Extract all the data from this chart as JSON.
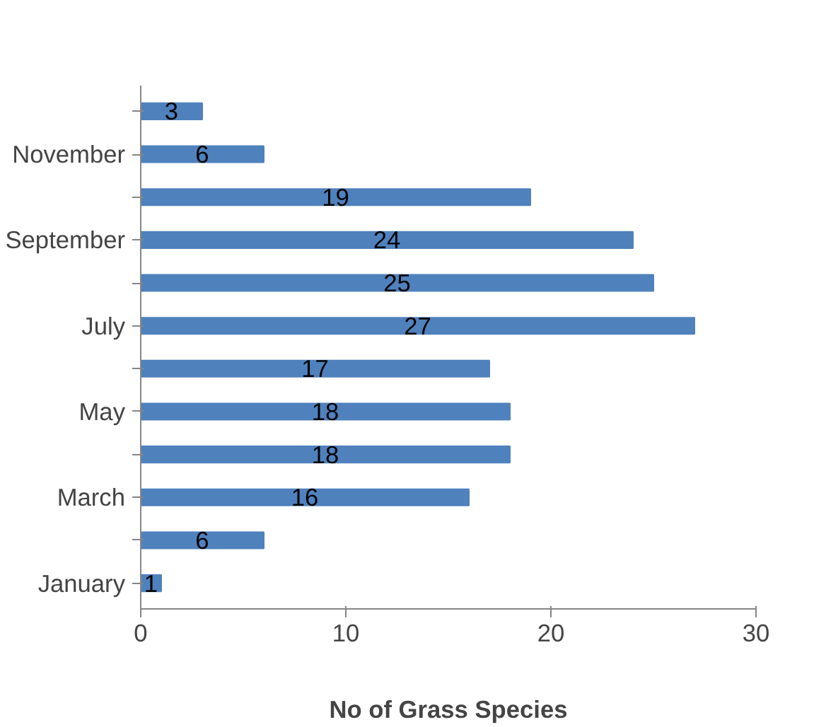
{
  "chart_data": {
    "type": "bar",
    "orientation": "horizontal",
    "xlabel": "No of Grass Species",
    "categories": [
      null,
      "November",
      null,
      "September",
      null,
      "July",
      null,
      "May",
      null,
      "March",
      null,
      "January"
    ],
    "values": [
      3,
      6,
      19,
      24,
      25,
      27,
      17,
      18,
      18,
      16,
      6,
      1
    ],
    "color": "#4f81bd",
    "xlim": [
      0,
      30
    ],
    "xticks": [
      0,
      10,
      20,
      30
    ],
    "data_labels": true,
    "grid": false
  }
}
